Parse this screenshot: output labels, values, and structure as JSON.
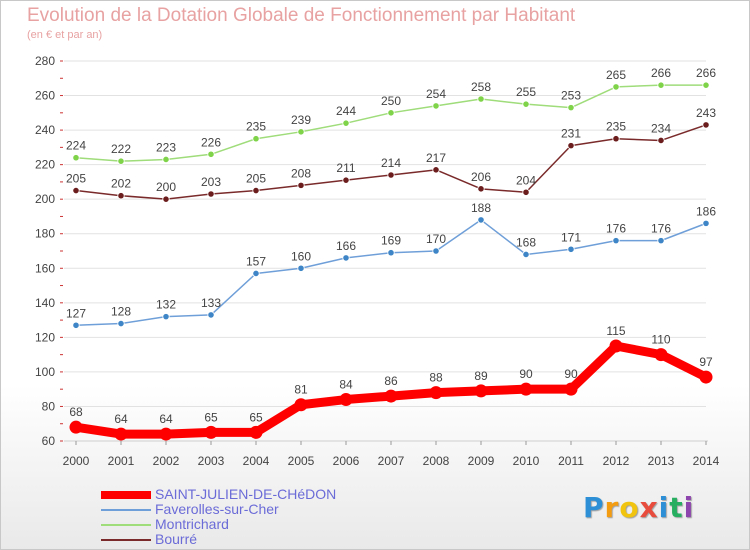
{
  "chart_data": {
    "type": "line",
    "title": "Evolution de la Dotation Globale de Fonctionnement par Habitant",
    "subtitle": "(en € et par an)",
    "xlabel": "",
    "ylabel": "",
    "x": [
      "2000",
      "2001",
      "2002",
      "2003",
      "2004",
      "2005",
      "2006",
      "2007",
      "2008",
      "2009",
      "2010",
      "2011",
      "2012",
      "2013",
      "2014"
    ],
    "ylim": [
      60,
      280
    ],
    "yticks": [
      60,
      80,
      100,
      120,
      140,
      160,
      180,
      200,
      220,
      240,
      260,
      280
    ],
    "grid": true,
    "legend_position": "bottom-left",
    "series": [
      {
        "name": "SAINT-JULIEN-DE-CHéDON",
        "color": "#ff0000",
        "marker_color": "#ff0000",
        "bold": true,
        "values": [
          68,
          64,
          64,
          65,
          65,
          81,
          84,
          86,
          88,
          89,
          90,
          90,
          115,
          110,
          97
        ]
      },
      {
        "name": "Faverolles-sur-Cher",
        "color": "#6f9fd8",
        "marker_color": "#3d85c6",
        "bold": false,
        "values": [
          127,
          128,
          132,
          133,
          157,
          160,
          166,
          169,
          170,
          188,
          168,
          171,
          176,
          176,
          186
        ]
      },
      {
        "name": "Montrichard",
        "color": "#9fdc7a",
        "marker_color": "#7ed348",
        "bold": false,
        "values": [
          224,
          222,
          223,
          226,
          235,
          239,
          244,
          250,
          254,
          258,
          255,
          253,
          265,
          266,
          266
        ]
      },
      {
        "name": "Bourré",
        "color": "#7a2a2a",
        "marker_color": "#6b1c1c",
        "bold": false,
        "values": [
          205,
          202,
          200,
          203,
          205,
          208,
          211,
          214,
          217,
          206,
          204,
          231,
          235,
          234,
          243
        ]
      }
    ]
  },
  "logo": {
    "letters": [
      "P",
      "r",
      "o",
      "x",
      "i",
      "t",
      "i"
    ],
    "colors": [
      "#2d8fd5",
      "#f39c12",
      "#f1c40f",
      "#e74c3c",
      "#2d8fd5",
      "#27ae60",
      "#8e44ad"
    ]
  }
}
